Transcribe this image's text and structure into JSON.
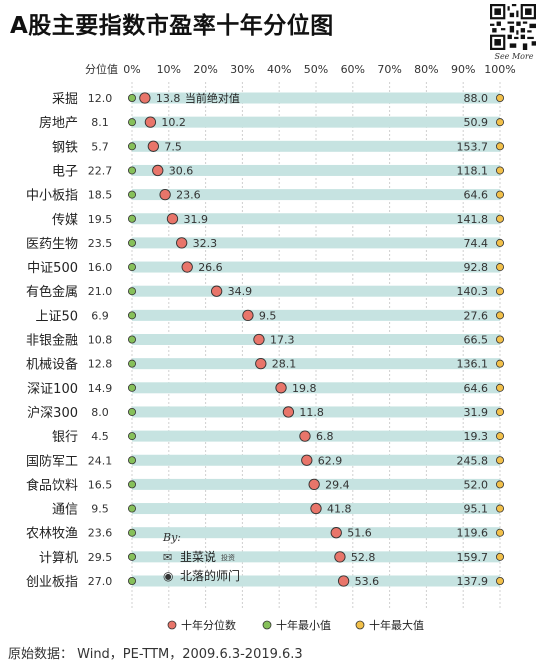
{
  "title": "A股主要指数市盈率十年分位图",
  "qr_caption": "See More",
  "source": "原始数据： Wind，PE-TTM，2009.6.3-2019.6.3",
  "watermark": {
    "by": "By:",
    "line1": "韭菜说",
    "line1_small": "投资",
    "line2": "北落的师门"
  },
  "colors": {
    "band": "#c6e3e1",
    "pct_dot": "#e8756a",
    "min_dot": "#86c05a",
    "max_dot": "#f2c04a",
    "grid": "#d0d0d0"
  },
  "chart_data": {
    "type": "scatter",
    "column_header": "分位值",
    "x_ticks": [
      "0%",
      "10%",
      "20%",
      "30%",
      "40%",
      "50%",
      "60%",
      "70%",
      "80%",
      "90%",
      "100%"
    ],
    "xlim": [
      0,
      100
    ],
    "annotation": "当前绝对值",
    "categories": [
      "采掘",
      "房地产",
      "钢铁",
      "电子",
      "中小板指",
      "传媒",
      "医药生物",
      "中证500",
      "有色金属",
      "上证50",
      "非银金融",
      "机械设备",
      "深证100",
      "沪深300",
      "银行",
      "国防军工",
      "食品饮料",
      "通信",
      "农林牧渔",
      "计算机",
      "创业板指"
    ],
    "min_pe": [
      12.0,
      8.1,
      5.7,
      22.7,
      18.5,
      19.5,
      23.5,
      16.0,
      21.0,
      6.9,
      10.8,
      12.8,
      14.9,
      8.0,
      4.5,
      24.1,
      16.5,
      9.5,
      23.6,
      29.5,
      27.0
    ],
    "current_pe": [
      13.8,
      10.2,
      7.5,
      30.6,
      23.6,
      31.9,
      32.3,
      26.6,
      34.9,
      9.5,
      17.3,
      28.1,
      19.8,
      11.8,
      6.8,
      62.9,
      29.4,
      41.8,
      51.6,
      52.8,
      53.6
    ],
    "max_pe": [
      88.0,
      50.9,
      153.7,
      118.1,
      64.6,
      141.8,
      74.4,
      92.8,
      140.3,
      27.6,
      66.5,
      136.1,
      64.6,
      31.9,
      19.3,
      245.8,
      52.0,
      95.1,
      119.6,
      159.7,
      137.9
    ],
    "percentile": [
      3.5,
      5.0,
      5.8,
      7.0,
      9.0,
      11.0,
      13.5,
      15.0,
      23.0,
      31.5,
      34.5,
      35.0,
      40.5,
      42.5,
      47.0,
      47.5,
      49.5,
      50.0,
      55.5,
      56.5,
      57.5
    ],
    "series": [
      {
        "name": "十年分位数"
      },
      {
        "name": "十年最小值"
      },
      {
        "name": "十年最大值"
      }
    ]
  }
}
